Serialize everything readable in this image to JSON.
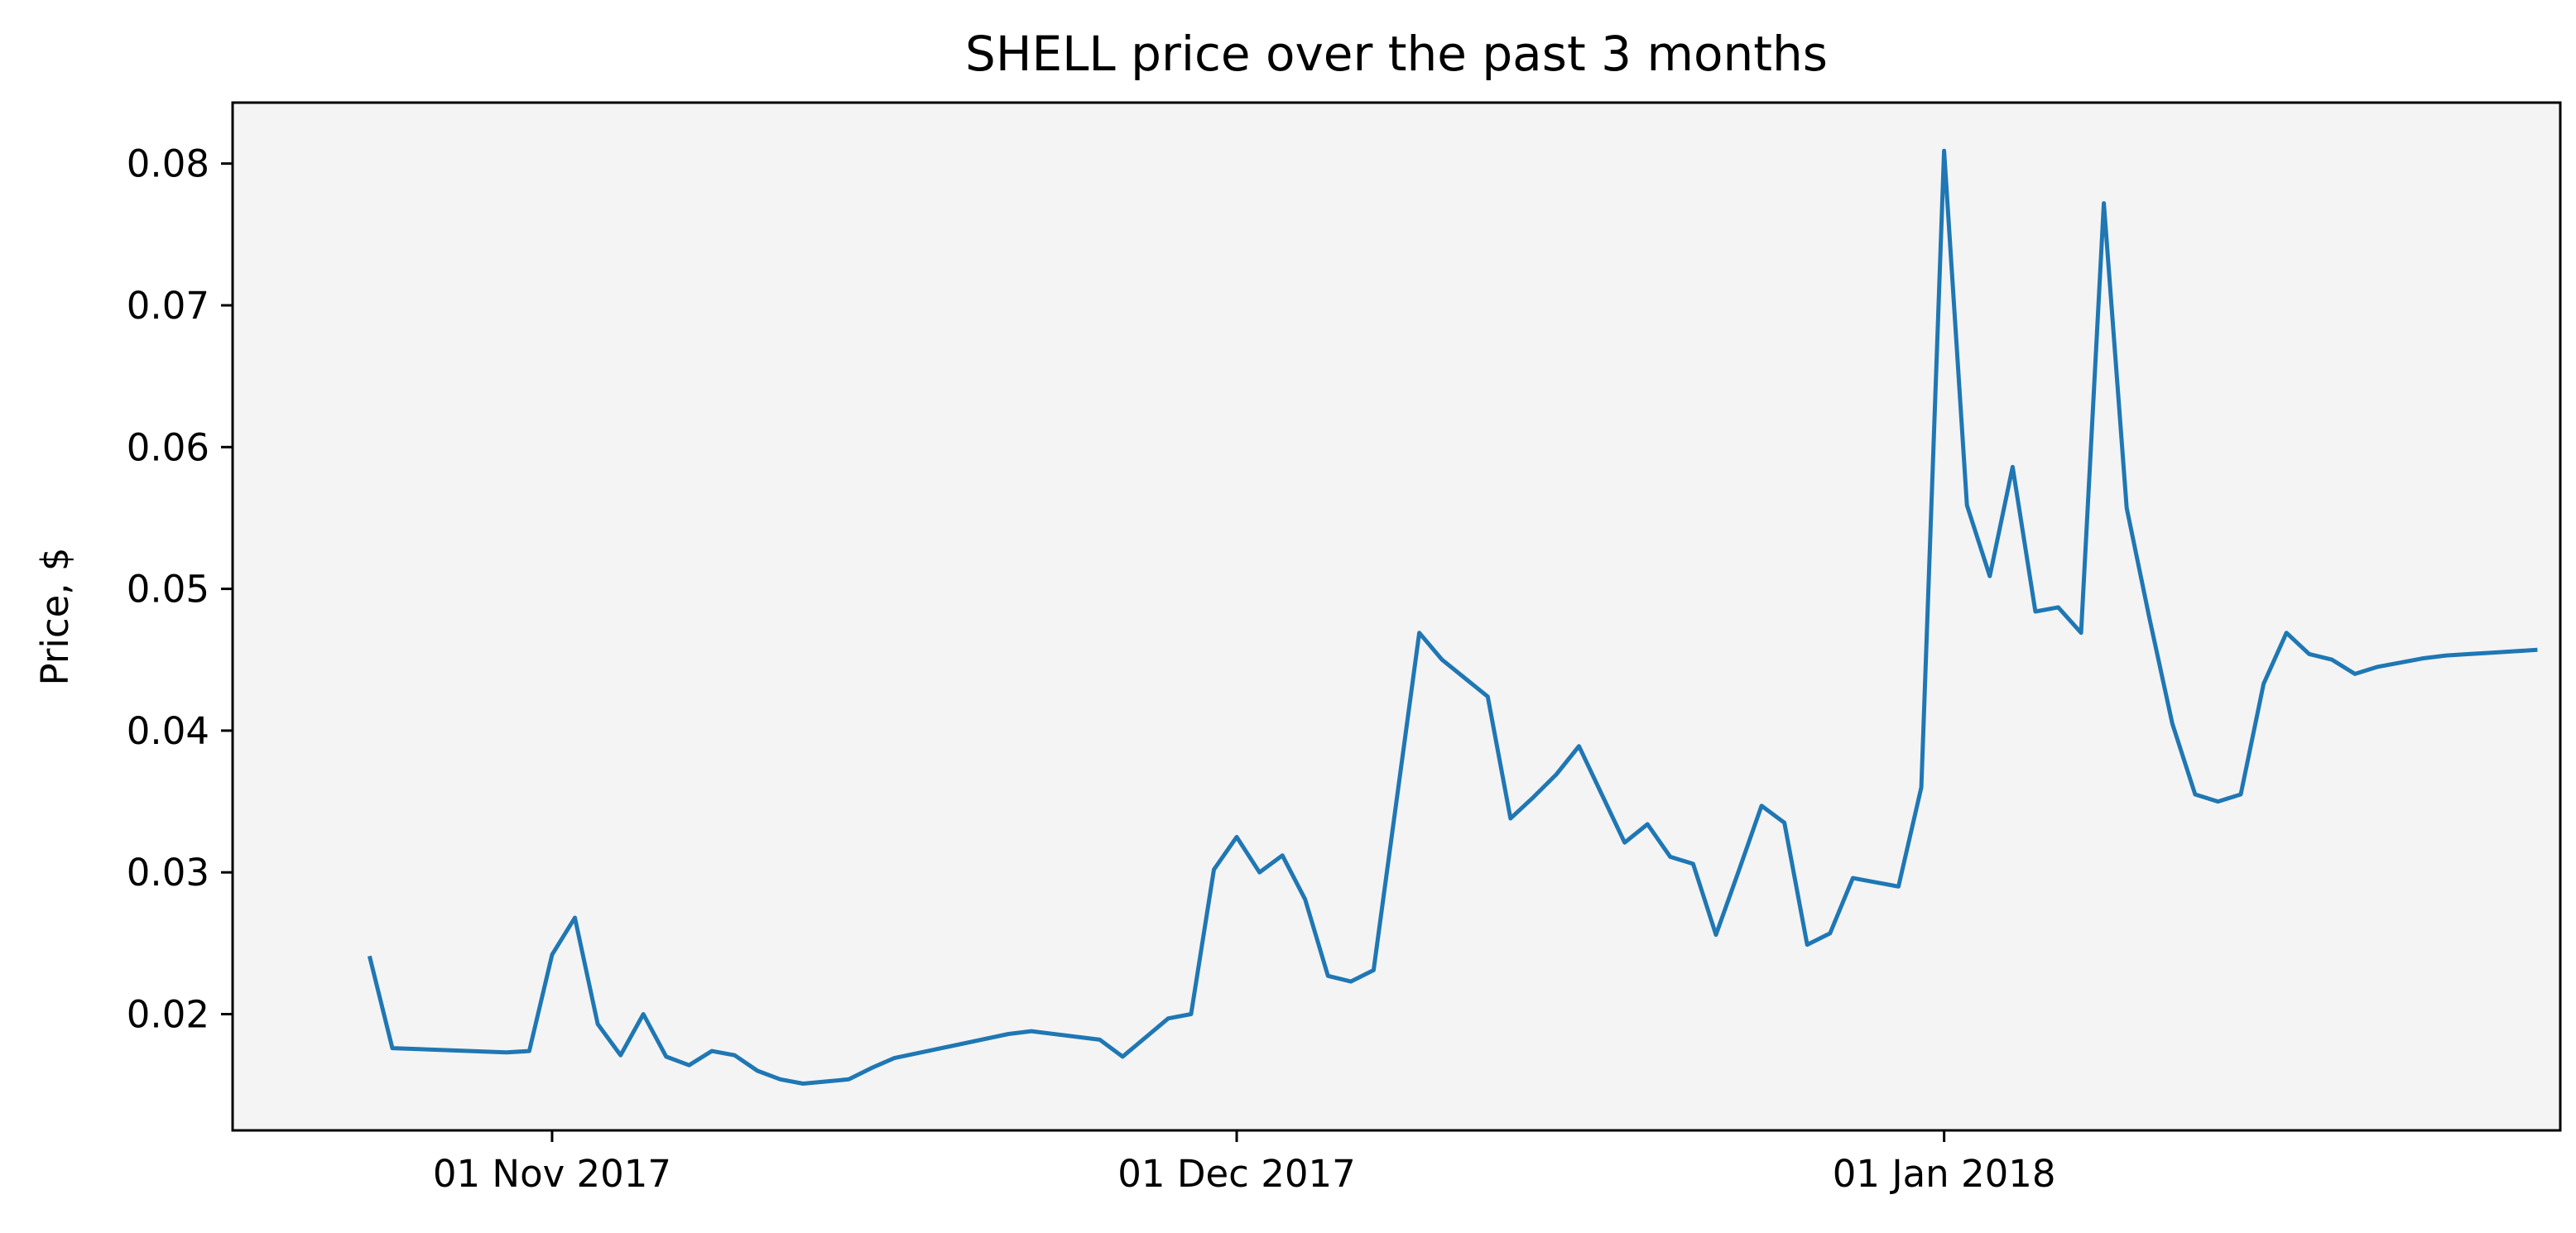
{
  "chart_data": {
    "type": "line",
    "title": "SHELL price over the past 3 months",
    "xlabel": "",
    "ylabel": "Price, $",
    "grid": false,
    "legend": "none",
    "plot_background": "#f4f4f4",
    "line_color": "#1f77b4",
    "xlim": [
      "2017-10-18",
      "2018-01-28"
    ],
    "ylim": [
      0.0118,
      0.0843
    ],
    "xticks": [
      {
        "value": "2017-11-01",
        "label": "01 Nov 2017"
      },
      {
        "value": "2017-12-01",
        "label": "01 Dec 2017"
      },
      {
        "value": "2018-01-01",
        "label": "01 Jan 2018"
      }
    ],
    "yticks": [
      {
        "value": 0.02,
        "label": "0.02"
      },
      {
        "value": 0.03,
        "label": "0.03"
      },
      {
        "value": 0.04,
        "label": "0.04"
      },
      {
        "value": 0.05,
        "label": "0.05"
      },
      {
        "value": 0.06,
        "label": "0.06"
      },
      {
        "value": 0.07,
        "label": "0.07"
      },
      {
        "value": 0.08,
        "label": "0.08"
      }
    ],
    "series": [
      {
        "x": [
          "2017-10-24",
          "2017-10-25",
          "2017-10-30",
          "2017-10-31",
          "2017-11-01",
          "2017-11-02",
          "2017-11-03",
          "2017-11-04",
          "2017-11-05",
          "2017-11-06",
          "2017-11-07",
          "2017-11-08",
          "2017-11-09",
          "2017-11-10",
          "2017-11-11",
          "2017-11-12",
          "2017-11-14",
          "2017-11-15",
          "2017-11-16",
          "2017-11-21",
          "2017-11-22",
          "2017-11-25",
          "2017-11-26",
          "2017-11-28",
          "2017-11-29",
          "2017-11-30",
          "2017-12-01",
          "2017-12-02",
          "2017-12-03",
          "2017-12-04",
          "2017-12-05",
          "2017-12-06",
          "2017-12-07",
          "2017-12-08",
          "2017-12-09",
          "2017-12-10",
          "2017-12-11",
          "2017-12-12",
          "2017-12-13",
          "2017-12-14",
          "2017-12-15",
          "2017-12-16",
          "2017-12-17",
          "2017-12-18",
          "2017-12-19",
          "2017-12-20",
          "2017-12-21",
          "2017-12-22",
          "2017-12-23",
          "2017-12-24",
          "2017-12-25",
          "2017-12-26",
          "2017-12-27",
          "2017-12-28",
          "2017-12-29",
          "2017-12-30",
          "2017-12-31",
          "2018-01-01",
          "2018-01-02",
          "2018-01-03",
          "2018-01-04",
          "2018-01-05",
          "2018-01-06",
          "2018-01-07",
          "2018-01-08",
          "2018-01-09",
          "2018-01-10",
          "2018-01-11",
          "2018-01-12",
          "2018-01-13",
          "2018-01-14",
          "2018-01-15",
          "2018-01-16",
          "2018-01-17",
          "2018-01-18",
          "2018-01-19",
          "2018-01-20",
          "2018-01-21",
          "2018-01-22",
          "2018-01-23",
          "2018-01-24",
          "2018-01-25",
          "2018-01-26",
          "2018-01-27"
        ],
        "y": [
          0.0241,
          0.0176,
          0.0173,
          0.0174,
          0.0242,
          0.0268,
          0.0193,
          0.0171,
          0.02,
          0.017,
          0.0164,
          0.0174,
          0.0171,
          0.016,
          0.0154,
          0.0151,
          0.0154,
          0.0162,
          0.0169,
          0.0186,
          0.0188,
          0.0182,
          0.017,
          0.0197,
          0.02,
          0.0302,
          0.0325,
          0.03,
          0.0312,
          0.0281,
          0.0227,
          0.0223,
          0.0231,
          0.035,
          0.0469,
          0.045,
          0.0437,
          0.0424,
          0.0338,
          0.0353,
          0.0369,
          0.0389,
          0.0355,
          0.0321,
          0.0334,
          0.0311,
          0.0306,
          0.0256,
          0.0301,
          0.0347,
          0.0335,
          0.0249,
          0.0257,
          0.0296,
          0.0293,
          0.029,
          0.036,
          0.0809,
          0.0559,
          0.0509,
          0.0586,
          0.0484,
          0.0487,
          0.0469,
          0.0772,
          0.0557,
          0.0479,
          0.0405,
          0.0355,
          0.035,
          0.0355,
          0.0433,
          0.0469,
          0.0454,
          0.045,
          0.044,
          0.0445,
          0.0448,
          0.0451,
          0.0453,
          0.0454,
          0.0455,
          0.0456,
          0.0457
        ]
      }
    ]
  }
}
